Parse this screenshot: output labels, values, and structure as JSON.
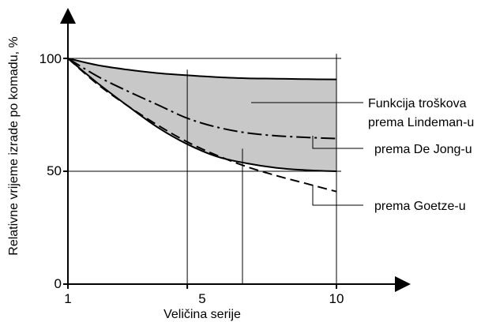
{
  "chart_data": {
    "type": "line",
    "xlabel": "Veličina serije",
    "ylabel": "Relativne vrijeme izrade po komadu, %",
    "xlim": [
      1,
      10
    ],
    "ylim": [
      0,
      100
    ],
    "x_ticks": [
      "1",
      "5",
      "10"
    ],
    "y_ticks": [
      "0",
      "50",
      "100"
    ],
    "grid": "partial",
    "band": {
      "label": "Funkcija troškova prema Lindeman-u",
      "label_lines": [
        "Funkcija troškova",
        "prema Lindeman-u"
      ],
      "fill": "#c8c8c8",
      "upper": {
        "x": [
          1,
          2,
          3,
          4,
          5,
          6,
          7,
          8,
          9,
          10
        ],
        "y": [
          100,
          97,
          95,
          93.5,
          92.5,
          91.7,
          91.2,
          91,
          90.8,
          90.7
        ]
      },
      "lower": {
        "x": [
          1,
          2,
          3,
          4,
          5,
          6,
          7,
          8,
          9,
          10
        ],
        "y": [
          100,
          89,
          79,
          69.5,
          62,
          56.5,
          53.5,
          51.5,
          50.5,
          50
        ]
      }
    },
    "series": [
      {
        "name": "prema De Jong-u",
        "style": "dash-dot",
        "x": [
          1,
          2,
          3,
          4,
          5,
          6,
          7,
          8,
          9,
          10
        ],
        "y": [
          100,
          92,
          85.5,
          79.5,
          73.5,
          69.5,
          67,
          65.7,
          65,
          64.5
        ]
      },
      {
        "name": "prema Goetze-u",
        "style": "dashed",
        "x": [
          1,
          2,
          3,
          4,
          5,
          6,
          7,
          8,
          9,
          10
        ],
        "y": [
          100,
          88.5,
          79,
          70.5,
          63,
          57,
          52,
          48,
          44.5,
          41
        ]
      }
    ]
  }
}
